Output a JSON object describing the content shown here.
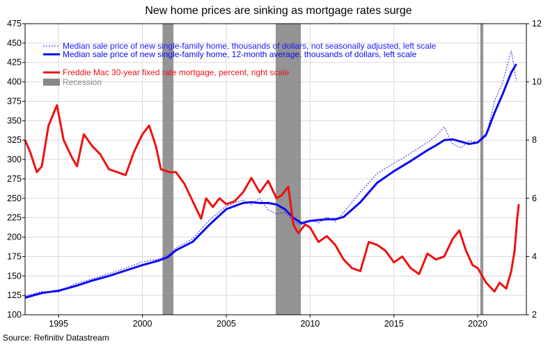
{
  "chart_data": {
    "type": "line",
    "title": "New home prices are sinking as mortgage rates surge",
    "source": "Source: Refinitiv Datastream",
    "x_ticks": [
      "1995",
      "2000",
      "2005",
      "2010",
      "2015",
      "2020"
    ],
    "x_tick_values": [
      1995,
      2000,
      2005,
      2010,
      2015,
      2020
    ],
    "xlim": [
      1993.0,
      2022.9
    ],
    "left_axis": {
      "ticks": [
        "100",
        "125",
        "150",
        "175",
        "200",
        "225",
        "250",
        "275",
        "300",
        "325",
        "350",
        "375",
        "400",
        "425",
        "450",
        "475"
      ],
      "ylim": [
        100,
        475
      ]
    },
    "right_axis": {
      "ticks": [
        "2",
        "4",
        "6",
        "8",
        "10",
        "12"
      ],
      "ylim": [
        2,
        12
      ]
    },
    "grid": true,
    "legend_placement": "top-left",
    "legend": [
      "Median sale price of new single-family home, thousands of dollars, not seasonally adjusted, left scale",
      "Median sale price of new single-family home, 12-month average, thousands of dollars, left scale",
      "Freddie Mac 30-year fixed rate mortgage, percent, right scale",
      "Recession"
    ],
    "colors": {
      "price": "#1c1cff",
      "price_avg": "#0a0af0",
      "mortgage": "#ee1111",
      "recession": "#888888"
    },
    "recessions": [
      [
        2001.2,
        2001.85
      ],
      [
        2007.95,
        2009.45
      ],
      [
        2020.15,
        2020.33
      ]
    ],
    "series": [
      {
        "name": "Median sale price of new single-family home, 12-month average, thousands of dollars, left scale",
        "axis": "left",
        "x": [
          1993.0,
          1994.0,
          1995.0,
          1996.0,
          1997.0,
          1998.0,
          1999.0,
          2000.0,
          2001.0,
          2001.5,
          2002.0,
          2003.0,
          2004.0,
          2005.0,
          2006.0,
          2006.5,
          2007.0,
          2007.5,
          2008.0,
          2008.5,
          2009.0,
          2009.5,
          2010.0,
          2010.5,
          2011.0,
          2011.5,
          2012.0,
          2013.0,
          2014.0,
          2015.0,
          2016.0,
          2017.0,
          2017.5,
          2018.0,
          2018.5,
          2019.0,
          2019.5,
          2020.0,
          2020.5,
          2021.0,
          2021.5,
          2022.0,
          2022.3
        ],
        "values": [
          122,
          128,
          131,
          137,
          144,
          150,
          157,
          164,
          170,
          174,
          183,
          194,
          216,
          236,
          244,
          245,
          244,
          244,
          242,
          236,
          225,
          218,
          221,
          222,
          223,
          223,
          226,
          245,
          270,
          285,
          298,
          312,
          318,
          325,
          326,
          323,
          320,
          322,
          332,
          360,
          385,
          412,
          423
        ]
      },
      {
        "name": "Median sale price of new single-family home, thousands of dollars, not seasonally adjusted, left scale",
        "axis": "left",
        "x": [
          1993.0,
          1994.0,
          1995.0,
          1996.0,
          1997.0,
          1998.0,
          1999.0,
          2000.0,
          2001.0,
          2001.5,
          2002.0,
          2003.0,
          2004.0,
          2005.0,
          2006.0,
          2006.5,
          2007.0,
          2007.5,
          2008.0,
          2008.5,
          2009.0,
          2009.5,
          2010.0,
          2010.5,
          2011.0,
          2011.5,
          2012.0,
          2013.0,
          2014.0,
          2015.0,
          2016.0,
          2017.0,
          2017.5,
          2018.0,
          2018.5,
          2019.0,
          2019.5,
          2020.0,
          2020.5,
          2021.0,
          2021.5,
          2022.0,
          2022.3
        ],
        "values": [
          124,
          130,
          129,
          140,
          146,
          153,
          160,
          168,
          172,
          176,
          186,
          198,
          222,
          240,
          248,
          242,
          250,
          235,
          230,
          232,
          220,
          216,
          222,
          218,
          226,
          220,
          232,
          258,
          282,
          295,
          308,
          322,
          330,
          342,
          320,
          315,
          324,
          322,
          330,
          375,
          400,
          440,
          402
        ]
      },
      {
        "name": "Freddie Mac 30-year fixed rate mortgage, percent, right scale",
        "axis": "right",
        "x": [
          1993.0,
          1993.3,
          1993.7,
          1994.0,
          1994.4,
          1994.9,
          1995.3,
          1995.8,
          1996.1,
          1996.5,
          1997.0,
          1997.5,
          1998.0,
          1998.5,
          1999.0,
          1999.5,
          2000.0,
          2000.4,
          2000.8,
          2001.1,
          2001.6,
          2002.0,
          2002.5,
          2003.0,
          2003.5,
          2003.8,
          2004.2,
          2004.6,
          2005.0,
          2005.5,
          2006.0,
          2006.5,
          2007.0,
          2007.5,
          2008.0,
          2008.3,
          2008.7,
          2009.0,
          2009.3,
          2009.7,
          2010.0,
          2010.5,
          2011.0,
          2011.5,
          2012.0,
          2012.5,
          2013.0,
          2013.5,
          2014.0,
          2014.5,
          2015.0,
          2015.5,
          2016.0,
          2016.5,
          2017.0,
          2017.5,
          2018.0,
          2018.5,
          2018.9,
          2019.3,
          2019.7,
          2020.0,
          2020.5,
          2021.0,
          2021.3,
          2021.7,
          2022.0,
          2022.2,
          2022.35,
          2022.45
        ],
        "values": [
          8.0,
          7.6,
          6.9,
          7.1,
          8.5,
          9.2,
          8.0,
          7.4,
          7.1,
          8.2,
          7.8,
          7.5,
          7.0,
          6.9,
          6.8,
          7.6,
          8.2,
          8.5,
          7.8,
          7.0,
          6.9,
          6.9,
          6.5,
          5.9,
          5.3,
          6.0,
          5.7,
          6.0,
          5.8,
          5.9,
          6.2,
          6.7,
          6.2,
          6.6,
          6.0,
          6.1,
          6.4,
          5.1,
          4.8,
          5.1,
          5.0,
          4.5,
          4.7,
          4.4,
          3.9,
          3.6,
          3.5,
          4.5,
          4.4,
          4.2,
          3.8,
          4.0,
          3.6,
          3.4,
          4.1,
          3.9,
          4.0,
          4.6,
          4.9,
          4.2,
          3.7,
          3.6,
          3.1,
          2.8,
          3.1,
          2.9,
          3.5,
          4.2,
          5.3,
          5.8
        ]
      }
    ]
  }
}
